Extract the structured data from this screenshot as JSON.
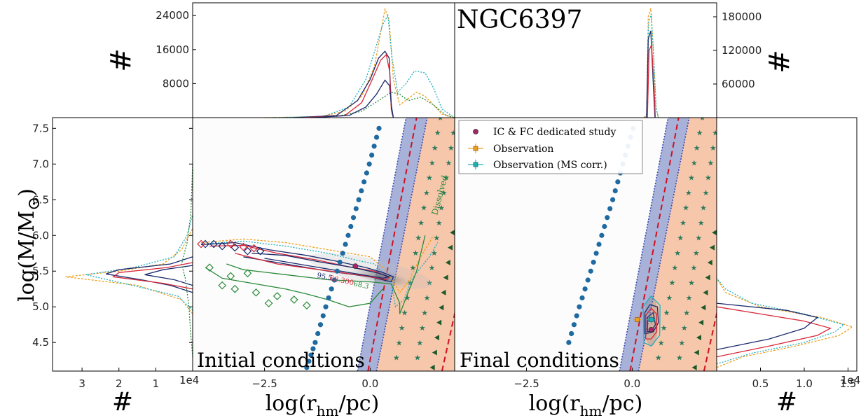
{
  "chart_data": {
    "type": "scatter",
    "figure_title": "NGC6397",
    "xlabel": "log(r",
    "xlabel_sub": "hm",
    "xlabel_tail": "/pc)",
    "ylabel": "log(M/M",
    "ylabel_sun": "⊙",
    "ylabel_tail": ")",
    "hist_ylabel": "#",
    "hist_xlabel": "#",
    "xlim": [
      -4.2,
      2.0
    ],
    "ylim": [
      4.1,
      7.65
    ],
    "xticks": [
      -2.5,
      0.0
    ],
    "xtick_labels": [
      "−2.5",
      "0.0"
    ],
    "yticks": [
      4.5,
      5.0,
      5.5,
      6.0,
      6.5,
      7.0,
      7.5
    ],
    "ytick_labels": [
      "4.5",
      "5.0",
      "5.5",
      "6.0",
      "6.5",
      "7.0",
      "7.5"
    ],
    "panels": {
      "initial": {
        "label": "Initial conditions",
        "contour_label_1": "68.300",
        "contour_label_2": "68.3",
        "contour_label_3": "95.5",
        "dissolved_label": "Dissolved"
      },
      "final": {
        "label": "Final conditions"
      }
    },
    "hist_top_left": {
      "yticks": [
        8000,
        16000,
        24000
      ],
      "ytick_labels": [
        "8000",
        "16000",
        "24000"
      ],
      "ylim": [
        0,
        27000
      ]
    },
    "hist_top_right": {
      "yticks": [
        60000,
        120000,
        180000
      ],
      "ytick_labels": [
        "60000",
        "120000",
        "180000"
      ],
      "ylim": [
        0,
        205000
      ]
    },
    "hist_left": {
      "xticks": [
        3,
        2,
        1
      ],
      "xtick_labels": [
        "3",
        "2",
        "1"
      ],
      "offset_label": "1e4",
      "xlim": [
        0,
        3.8
      ]
    },
    "hist_right": {
      "xticks": [
        0.5,
        1.0,
        1.5
      ],
      "xtick_labels": [
        "0.5",
        "1.0",
        "1.5"
      ],
      "offset_label": "1e4",
      "xlim": [
        0,
        1.6
      ]
    },
    "legend": {
      "placement": "top-left of final panel",
      "entries": [
        {
          "label": "IC & FC dedicated study",
          "marker": "circle",
          "color": "#a8246a"
        },
        {
          "label": "Observation",
          "marker": "square-errorbar",
          "color": "#e8a020"
        },
        {
          "label": "Observation (MS corr.)",
          "marker": "square-errorbar",
          "color": "#20b0b0"
        }
      ]
    },
    "series_colors": {
      "blue": "#1a2a6c",
      "red": "#d8283a",
      "orange": "#f0a020",
      "cyan": "#20b0c0",
      "green": "#2a8a3a",
      "dots": "#1f6aa0",
      "stars": "#2a7a5a",
      "triangles": "#1a5a2a",
      "band_blue": "#7080c0",
      "band_orange": "#f5b08a"
    },
    "dotted_line": {
      "initial": [
        [
          -1.5,
          4.15
        ],
        [
          -1.3,
          4.5
        ],
        [
          -1.05,
          5.0
        ],
        [
          -0.78,
          5.5
        ],
        [
          -0.52,
          6.0
        ],
        [
          -0.27,
          6.5
        ],
        [
          -0.02,
          7.0
        ],
        [
          0.21,
          7.5
        ]
      ],
      "final": [
        [
          -1.5,
          4.5
        ],
        [
          -1.25,
          5.0
        ],
        [
          -0.98,
          5.5
        ],
        [
          -0.72,
          6.0
        ],
        [
          -0.46,
          6.5
        ],
        [
          -0.22,
          7.0
        ],
        [
          0.02,
          7.5
        ]
      ]
    },
    "ic_dedicated_point": [
      -0.35,
      5.57
    ],
    "fc_dedicated_point": [
      0.45,
      4.68
    ],
    "observation": [
      0.12,
      4.82
    ],
    "observation_ms_corr": [
      0.45,
      4.82
    ]
  }
}
